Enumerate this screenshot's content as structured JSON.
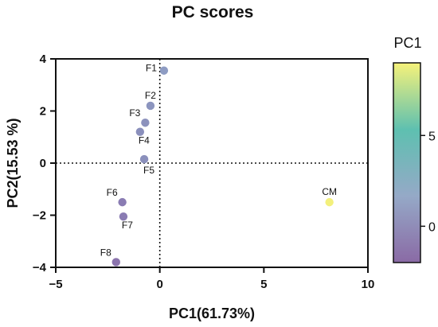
{
  "chart_data": {
    "type": "scatter",
    "title": "PC scores",
    "xlabel": "PC1(61.73%)",
    "ylabel": "PC2(15.53 %)",
    "xlim": [
      -5,
      10
    ],
    "ylim": [
      -4,
      4
    ],
    "x_ticks": [
      "−5",
      "0",
      "5",
      "10"
    ],
    "y_ticks": [
      "4",
      "2",
      "0",
      "−2",
      "−4"
    ],
    "x_tick_values": [
      -5,
      0,
      5,
      10
    ],
    "y_tick_values": [
      4,
      2,
      0,
      -2,
      -4
    ],
    "reference_lines": {
      "x": 0,
      "y": 0,
      "style": "dotted"
    },
    "colorbar": {
      "title": "PC1",
      "range": [
        -2,
        9
      ],
      "ticks": [
        "0",
        "5"
      ],
      "tick_values": [
        0,
        5
      ],
      "colors": [
        "#8a6aa5",
        "#95a9c7",
        "#5ec0b0",
        "#f6f27a"
      ]
    },
    "points": [
      {
        "label": "F1",
        "x": 0.2,
        "y": 3.55,
        "color": "#8e9cc3",
        "label_pos": "left"
      },
      {
        "label": "F2",
        "x": -0.45,
        "y": 2.2,
        "color": "#8c95bf",
        "label_pos": "above"
      },
      {
        "label": "F3",
        "x": -0.7,
        "y": 1.55,
        "color": "#8c92bd",
        "label_pos": "above-left"
      },
      {
        "label": "F4",
        "x": -0.95,
        "y": 1.2,
        "color": "#8a8fbc",
        "label_pos": "below-right"
      },
      {
        "label": "F5",
        "x": -0.75,
        "y": 0.15,
        "color": "#8b90bc",
        "label_pos": "below"
      },
      {
        "label": "F6",
        "x": -1.8,
        "y": -1.5,
        "color": "#8a7cb3",
        "label_pos": "above-left"
      },
      {
        "label": "F7",
        "x": -1.75,
        "y": -2.05,
        "color": "#8a7cb3",
        "label_pos": "below-right"
      },
      {
        "label": "F8",
        "x": -2.1,
        "y": -3.8,
        "color": "#8b74ad",
        "label_pos": "above-left"
      },
      {
        "label": "CM",
        "x": 8.15,
        "y": -1.5,
        "color": "#f3f07c",
        "label_pos": "above"
      }
    ]
  }
}
